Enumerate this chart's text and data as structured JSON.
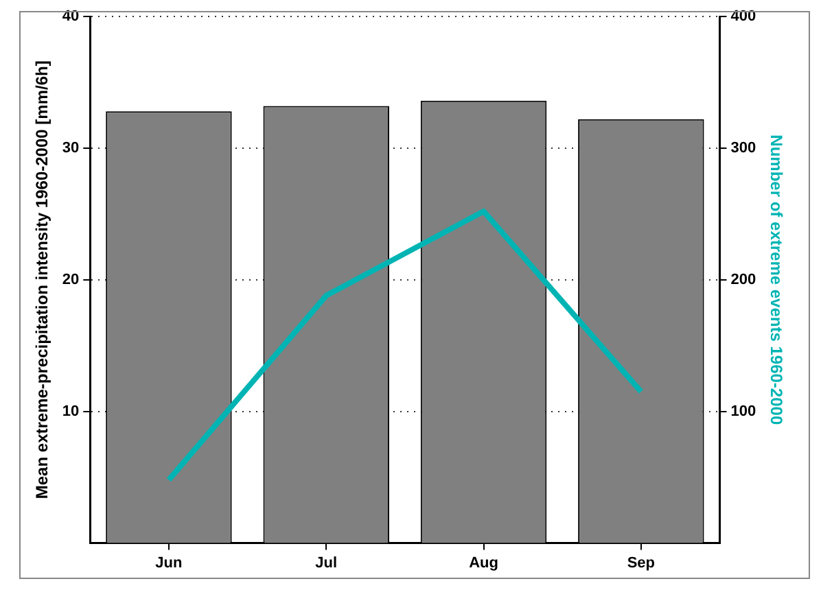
{
  "chart_data": {
    "type": "bar",
    "categories": [
      "Jun",
      "Jul",
      "Aug",
      "Sep"
    ],
    "ylabel": "Mean extreme-precipitation intensity 1960-2000 [mm/6h]",
    "y2label": "Number of extreme events 1960-2000",
    "series": [
      {
        "type": "bar",
        "color": "#808080",
        "values": [
          32.8,
          33.2,
          33.6,
          32.2
        ]
      },
      {
        "type": "line",
        "axis": "y2",
        "color": "#00b4b4",
        "values": [
          48,
          188,
          252,
          115
        ]
      }
    ],
    "ylim": [
      0,
      40
    ],
    "yticks": [
      10,
      20,
      30,
      40
    ],
    "y2lim": [
      0,
      400
    ],
    "y2ticks": [
      100,
      200,
      300,
      400
    ],
    "grid": "y",
    "legend": false,
    "marker": "none",
    "line_style": "solid"
  }
}
